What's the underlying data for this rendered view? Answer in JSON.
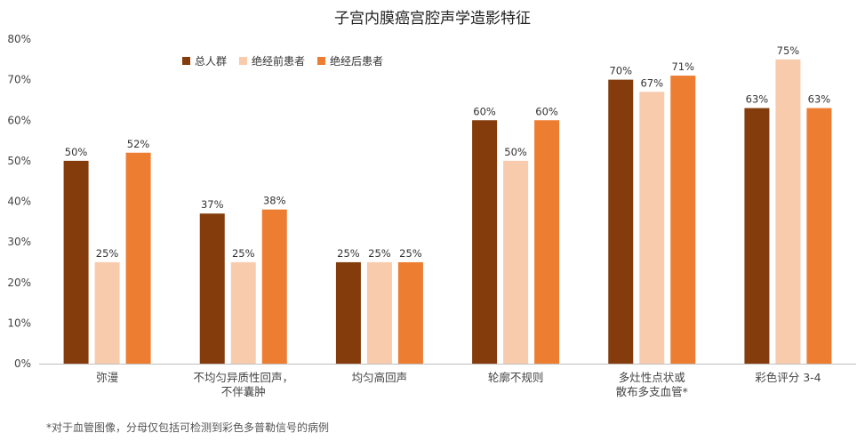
{
  "chart_data": {
    "type": "bar",
    "title": "子宫内膜癌宫腔声学造影特征",
    "xlabel": "",
    "ylabel": "",
    "ylim": [
      0,
      80
    ],
    "y_ticks": [
      "0%",
      "10%",
      "20%",
      "30%",
      "40%",
      "50%",
      "60%",
      "70%",
      "80%"
    ],
    "categories": [
      [
        "弥漫"
      ],
      [
        "不均匀异质性回声，",
        "不伴囊肿"
      ],
      [
        "均匀高回声"
      ],
      [
        "轮廓不规则"
      ],
      [
        "多灶性点状或",
        "散布多支血管*"
      ],
      [
        "彩色评分 3-4"
      ]
    ],
    "series": [
      {
        "name": "总人群",
        "color": "#843C0C",
        "values": [
          50,
          37,
          25,
          60,
          70,
          63
        ]
      },
      {
        "name": "绝经前患者",
        "color": "#F8CBAD",
        "values": [
          25,
          25,
          25,
          50,
          67,
          75
        ]
      },
      {
        "name": "绝经后患者",
        "color": "#ED7D31",
        "values": [
          52,
          38,
          25,
          60,
          71,
          63
        ]
      }
    ],
    "legend_position": "top-left",
    "grid": false
  },
  "footnote": "*对于血管图像，分母仅包括可检测到彩色多普勒信号的病例"
}
